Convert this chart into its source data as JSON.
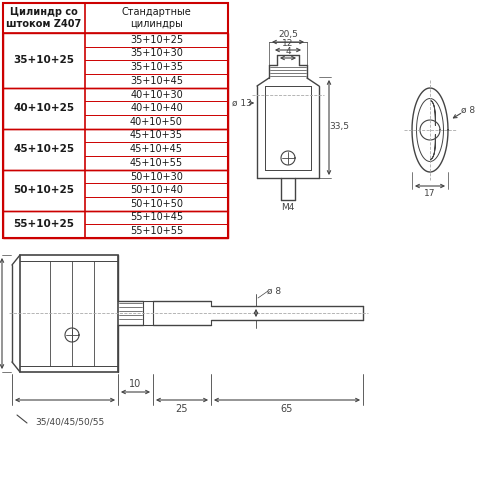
{
  "table_header_col1": "Цилиндр со\nштоком Z407",
  "table_header_col2": "Стандартные\nцилиндры",
  "table_rows": [
    [
      "35+10+25",
      [
        "35+10+25",
        "35+10+30",
        "35+10+35",
        "35+10+45"
      ]
    ],
    [
      "40+10+25",
      [
        "40+10+30",
        "40+10+40",
        "40+10+50"
      ]
    ],
    [
      "45+10+25",
      [
        "45+10+35",
        "45+10+45",
        "45+10+55"
      ]
    ],
    [
      "50+10+25",
      [
        "50+10+30",
        "50+10+40",
        "50+10+50"
      ]
    ],
    [
      "55+10+25",
      [
        "55+10+45",
        "55+10+55"
      ]
    ]
  ],
  "border_color": "#cc0000",
  "text_color": "#1a1a1a",
  "bg_color": "#ffffff",
  "dim_color": "#444444",
  "body_color": "#444444"
}
